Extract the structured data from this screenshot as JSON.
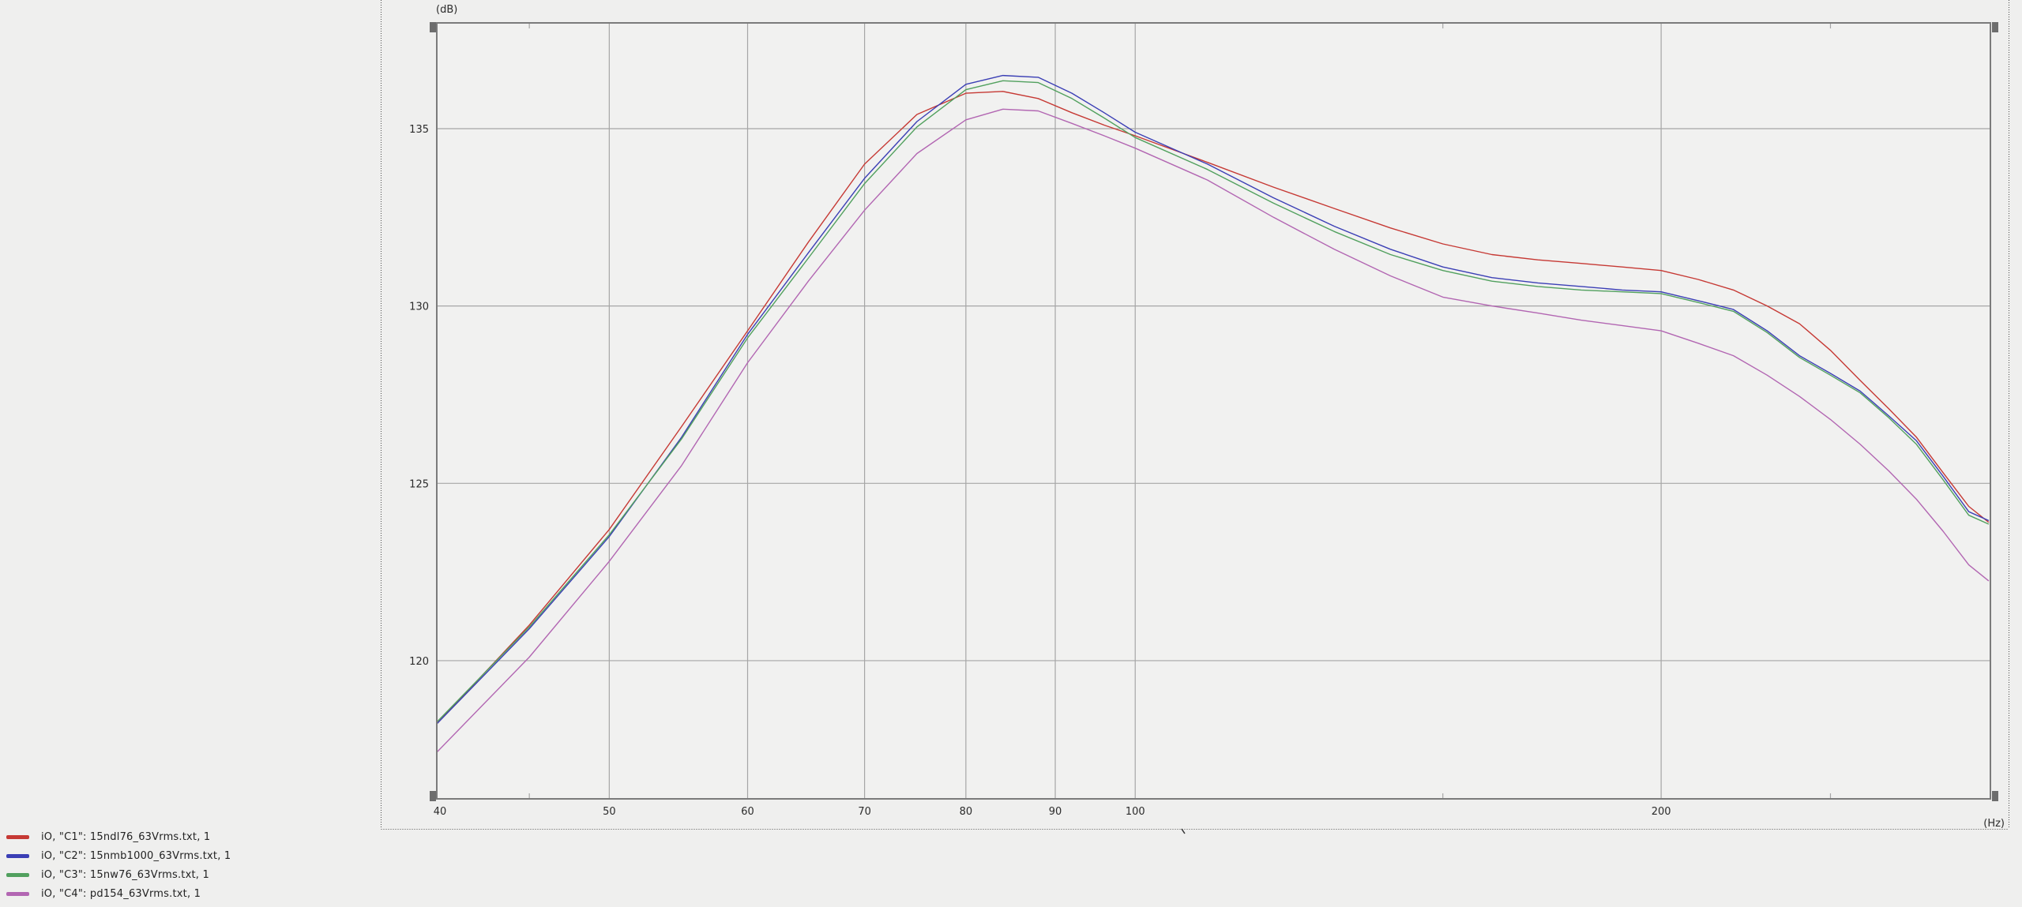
{
  "chart_data": {
    "type": "line",
    "title": "",
    "x_axis": {
      "unit_label": "(Hz)",
      "scale": "log",
      "range": [
        40,
        308
      ],
      "tick_labels": [
        40,
        50,
        60,
        70,
        80,
        90,
        100,
        200
      ],
      "gridlines": [
        50,
        60,
        70,
        80,
        90,
        100,
        200
      ],
      "minor_ticks": [
        45,
        150,
        250
      ]
    },
    "y_axis": {
      "unit_label": "(dB)",
      "scale": "linear",
      "range": [
        116.1,
        138.0
      ],
      "tick_labels": [
        135,
        130,
        125,
        120
      ],
      "gridlines": [
        135,
        130,
        125,
        120
      ]
    },
    "grid": true,
    "legend_position": "bottom-left",
    "frequencies": [
      39.8,
      45,
      50,
      55,
      60,
      65,
      70,
      75,
      80,
      84,
      88,
      92,
      96,
      100,
      110,
      120,
      130,
      140,
      150,
      160,
      170,
      180,
      190,
      200,
      210,
      220,
      230,
      240,
      250,
      260,
      270,
      280,
      290,
      300,
      308
    ],
    "series": [
      {
        "id": "C1",
        "name": "iO, \"C1\": 15ndl76_63Vrms.txt, 1",
        "color": "#c63934",
        "values": [
          118.2,
          121.0,
          123.7,
          126.6,
          129.3,
          131.8,
          134.0,
          135.4,
          136.0,
          136.05,
          135.85,
          135.45,
          135.1,
          134.8,
          134.05,
          133.35,
          132.75,
          132.2,
          131.75,
          131.45,
          131.3,
          131.2,
          131.1,
          131.0,
          130.75,
          130.45,
          130.0,
          129.5,
          128.75,
          127.9,
          127.1,
          126.3,
          125.3,
          124.35,
          123.9
        ]
      },
      {
        "id": "C2",
        "name": "iO, \"C2\": 15nmb1000_63Vrms.txt, 1",
        "color": "#3b3fb5",
        "values": [
          118.2,
          120.9,
          123.5,
          126.3,
          129.2,
          131.5,
          133.6,
          135.2,
          136.25,
          136.5,
          136.45,
          136.0,
          135.45,
          134.9,
          134.0,
          133.05,
          132.25,
          131.6,
          131.1,
          130.8,
          130.65,
          130.55,
          130.45,
          130.4,
          130.15,
          129.9,
          129.3,
          128.6,
          128.1,
          127.6,
          126.9,
          126.2,
          125.2,
          124.2,
          123.95
        ]
      },
      {
        "id": "C3",
        "name": "iO, \"C3\": 15nw76_63Vrms.txt, 1",
        "color": "#51a05e",
        "values": [
          118.25,
          120.95,
          123.55,
          126.25,
          129.1,
          131.35,
          133.45,
          135.05,
          136.1,
          136.35,
          136.3,
          135.85,
          135.3,
          134.75,
          133.85,
          132.9,
          132.1,
          131.45,
          131.0,
          130.7,
          130.55,
          130.45,
          130.4,
          130.35,
          130.1,
          129.85,
          129.25,
          128.55,
          128.05,
          127.55,
          126.85,
          126.1,
          125.1,
          124.1,
          123.85
        ]
      },
      {
        "id": "C4",
        "name": "iO, \"C4\": pd154_63Vrms.txt, 1",
        "color": "#b266b2",
        "values": [
          117.4,
          120.1,
          122.8,
          125.5,
          128.4,
          130.7,
          132.7,
          134.3,
          135.25,
          135.55,
          135.5,
          135.15,
          134.8,
          134.45,
          133.55,
          132.5,
          131.6,
          130.85,
          130.25,
          130.0,
          129.8,
          129.6,
          129.45,
          129.3,
          128.95,
          128.6,
          128.05,
          127.45,
          126.8,
          126.1,
          125.35,
          124.55,
          123.65,
          122.7,
          122.25
        ]
      }
    ]
  },
  "colors": {
    "background": "#efefee",
    "plot_fill": "#f1f1f0",
    "grid": "#a6a6a6",
    "border": "#7b7b7b",
    "handle": "#6d6d6d",
    "dashed_guide": "#4a4a4a",
    "text": "#2b2b2b"
  }
}
